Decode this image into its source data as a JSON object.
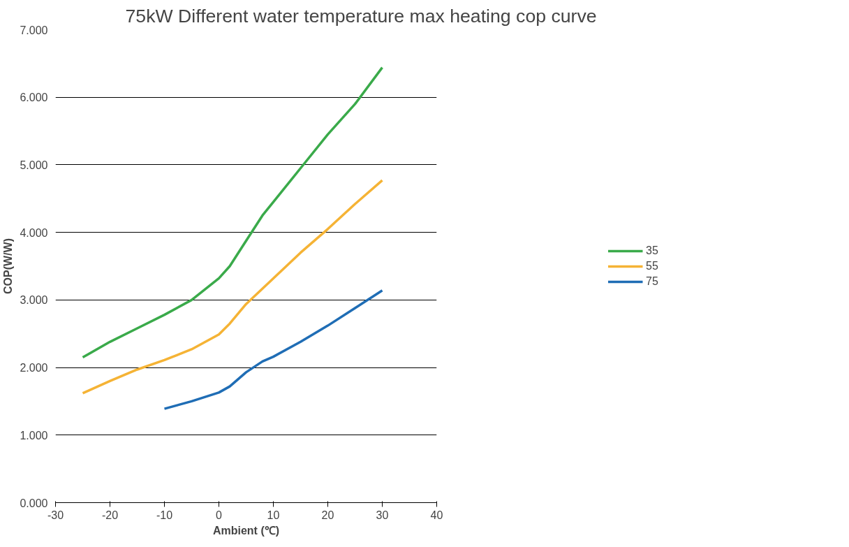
{
  "chart_data": {
    "type": "line",
    "title": "75kW Different water temperature max heating  cop curve",
    "xlabel": "Ambient (℃)",
    "ylabel": "COP(W/W)",
    "series": [
      {
        "name": "35",
        "color": "#3aaa4a",
        "x": [
          -25,
          -20,
          -15,
          -10,
          -5,
          0,
          2,
          4,
          8,
          10,
          15,
          20,
          25,
          30
        ],
        "values": [
          2.15,
          2.38,
          2.58,
          2.78,
          3.0,
          3.32,
          3.5,
          3.75,
          4.25,
          4.45,
          4.95,
          5.45,
          5.9,
          6.44
        ]
      },
      {
        "name": "55",
        "color": "#f5b335",
        "x": [
          -25,
          -20,
          -15,
          -10,
          -5,
          0,
          2,
          5,
          10,
          15,
          20,
          25,
          30
        ],
        "values": [
          1.62,
          1.8,
          1.97,
          2.11,
          2.27,
          2.49,
          2.65,
          2.94,
          3.32,
          3.7,
          4.05,
          4.42,
          4.77
        ]
      },
      {
        "name": "75",
        "color": "#1f6db5",
        "x": [
          -10,
          -5,
          0,
          2,
          5,
          8,
          10,
          15,
          20,
          25,
          30
        ],
        "values": [
          1.39,
          1.5,
          1.63,
          1.72,
          1.93,
          2.09,
          2.16,
          2.38,
          2.62,
          2.88,
          3.14
        ]
      }
    ],
    "xlim": [
      -30,
      40
    ],
    "xticks": [
      -30,
      -20,
      -10,
      0,
      10,
      20,
      30,
      40
    ],
    "ylim": [
      0,
      7
    ],
    "yticks": [
      {
        "value": 0,
        "label": "0.000"
      },
      {
        "value": 1,
        "label": "1.000"
      },
      {
        "value": 2,
        "label": "2.000"
      },
      {
        "value": 3,
        "label": "3.000"
      },
      {
        "value": 4,
        "label": "4.000"
      },
      {
        "value": 5,
        "label": "5.000"
      },
      {
        "value": 6,
        "label": "6.000"
      },
      {
        "value": 7,
        "label": "7.000"
      }
    ],
    "grid": "y",
    "legend": "right",
    "marker": "none",
    "line_style": "solid"
  }
}
